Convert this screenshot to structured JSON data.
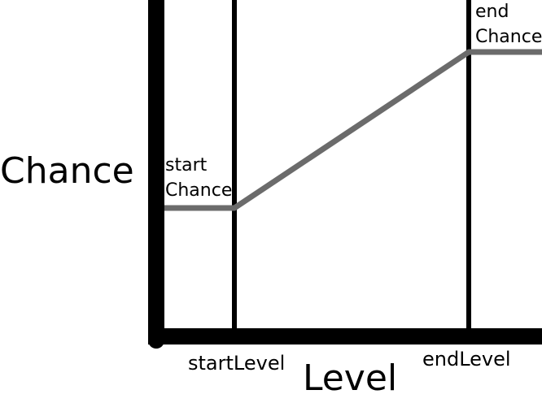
{
  "diagram": {
    "y_axis_label": "Chance",
    "x_axis_label": "Level",
    "start_level_label": "startLevel",
    "end_level_label": "endLevel",
    "start_chance_label": [
      "start",
      "Chance"
    ],
    "end_chance_label": [
      "end",
      "Chance"
    ]
  },
  "colors": {
    "axis": "#000000",
    "marker": "#000000",
    "curve": "#6b6b6b",
    "background": "#ffffff"
  }
}
